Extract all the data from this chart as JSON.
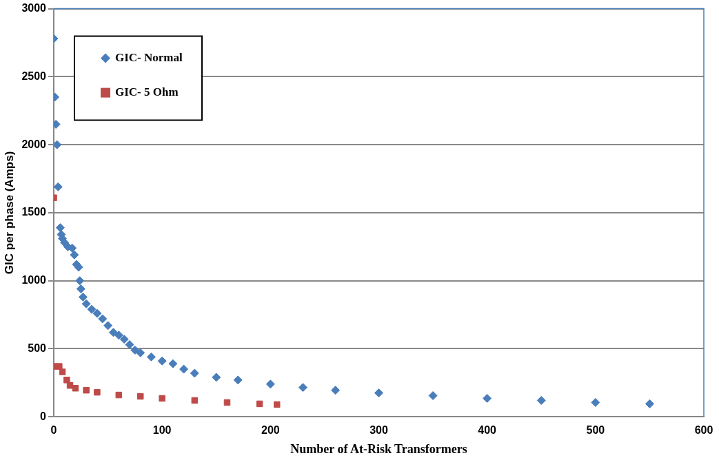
{
  "chart_data": {
    "type": "scatter",
    "xlabel": "Number of At-Risk Transformers",
    "ylabel": "GIC per phase (Amps)",
    "xlim": [
      0,
      600
    ],
    "xticks": [
      0,
      100,
      200,
      300,
      400,
      500,
      600
    ],
    "ylim": [
      0,
      3000
    ],
    "yticks": [
      0,
      500,
      1000,
      1500,
      2000,
      2500,
      3000
    ],
    "grid": "y",
    "legend": "top left",
    "series": [
      {
        "name": "GIC- Normal",
        "color": "#4a7ebb",
        "marker": "diamond",
        "x": [
          0,
          1,
          2,
          3,
          4,
          6,
          7,
          8,
          10,
          13,
          17,
          19,
          21,
          23,
          24,
          25,
          27,
          30,
          35,
          40,
          45,
          50,
          55,
          60,
          65,
          70,
          75,
          80,
          90,
          100,
          110,
          120,
          130,
          150,
          170,
          200,
          230,
          260,
          300,
          350,
          400,
          450,
          500,
          550
        ],
        "values": [
          2780,
          2350,
          2150,
          2000,
          1690,
          1390,
          1340,
          1310,
          1280,
          1250,
          1240,
          1190,
          1120,
          1100,
          1000,
          940,
          880,
          830,
          790,
          760,
          720,
          670,
          620,
          600,
          570,
          530,
          490,
          470,
          440,
          410,
          390,
          350,
          320,
          290,
          270,
          240,
          215,
          195,
          175,
          155,
          135,
          120,
          105,
          95
        ]
      },
      {
        "name": "GIC- 5 Ohm",
        "color": "#be4b48",
        "marker": "square",
        "x": [
          0,
          0,
          5,
          8,
          12,
          15,
          20,
          30,
          40,
          60,
          80,
          100,
          130,
          160,
          190,
          206
        ],
        "values": [
          1610,
          370,
          370,
          330,
          270,
          230,
          210,
          195,
          180,
          160,
          150,
          135,
          120,
          105,
          95,
          90
        ]
      }
    ]
  }
}
